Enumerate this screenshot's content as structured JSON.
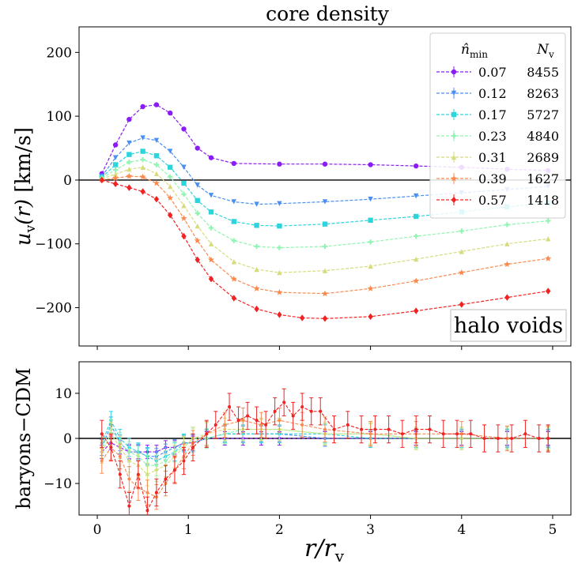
{
  "chart_data": [
    {
      "type": "line",
      "title": "core density",
      "xlabel": "r/r_v",
      "ylabel": "u_v(r) [km/s]",
      "xlim": [
        -0.2,
        5.2
      ],
      "ylim": [
        -260,
        240
      ],
      "xticks": [
        0,
        1,
        2,
        3,
        4,
        5
      ],
      "yticks": [
        -200,
        -100,
        0,
        100,
        200
      ],
      "ytick_labels": [
        "−200",
        "−100",
        "0",
        "100",
        "200"
      ],
      "annotation": "halo voids",
      "legend": {
        "header_left": "n̂_min",
        "header_right": "N_v",
        "placement": "top-right"
      },
      "series": [
        {
          "name": "0.07",
          "count": "8455",
          "color": "#8b1cf5",
          "marker": "circle",
          "x": [
            0.05,
            0.2,
            0.35,
            0.5,
            0.65,
            0.8,
            0.95,
            1.1,
            1.25,
            1.5,
            2.0,
            2.5,
            3.0,
            3.5,
            4.0,
            4.5,
            4.95
          ],
          "y": [
            10,
            55,
            95,
            115,
            118,
            105,
            80,
            50,
            35,
            26,
            25,
            25,
            24,
            22,
            20,
            17,
            15
          ]
        },
        {
          "name": "0.12",
          "count": "8263",
          "color": "#4a8ff0",
          "marker": "triangle-down",
          "x": [
            0.05,
            0.2,
            0.35,
            0.5,
            0.65,
            0.8,
            0.95,
            1.1,
            1.25,
            1.5,
            1.75,
            2.0,
            2.5,
            3.0,
            3.5,
            4.0,
            4.5,
            4.95
          ],
          "y": [
            6,
            35,
            58,
            66,
            62,
            45,
            20,
            -8,
            -24,
            -34,
            -38,
            -37,
            -34,
            -30,
            -25,
            -20,
            -15,
            -10
          ]
        },
        {
          "name": "0.17",
          "count": "5727",
          "color": "#2cd4dc",
          "marker": "square",
          "x": [
            0.05,
            0.2,
            0.35,
            0.5,
            0.65,
            0.8,
            0.95,
            1.1,
            1.25,
            1.5,
            1.75,
            2.0,
            2.5,
            3.0,
            3.5,
            4.0,
            4.5,
            4.95
          ],
          "y": [
            4,
            24,
            40,
            45,
            38,
            20,
            -5,
            -32,
            -50,
            -65,
            -71,
            -72,
            -69,
            -63,
            -57,
            -50,
            -42,
            -36
          ]
        },
        {
          "name": "0.23",
          "count": "4840",
          "color": "#8ef5b0",
          "marker": "plus",
          "x": [
            0.05,
            0.2,
            0.35,
            0.5,
            0.65,
            0.8,
            0.95,
            1.1,
            1.25,
            1.5,
            1.75,
            2.0,
            2.5,
            3.0,
            3.5,
            4.0,
            4.5,
            4.95
          ],
          "y": [
            3,
            16,
            28,
            32,
            24,
            5,
            -22,
            -52,
            -75,
            -95,
            -104,
            -106,
            -104,
            -97,
            -88,
            -80,
            -70,
            -64
          ]
        },
        {
          "name": "0.31",
          "count": "2689",
          "color": "#d6dc7c",
          "marker": "triangle-up",
          "x": [
            0.05,
            0.2,
            0.35,
            0.5,
            0.65,
            0.8,
            0.95,
            1.1,
            1.25,
            1.5,
            1.75,
            2.0,
            2.5,
            3.0,
            3.5,
            4.0,
            4.5,
            4.95
          ],
          "y": [
            2,
            9,
            17,
            20,
            10,
            -10,
            -40,
            -72,
            -100,
            -128,
            -140,
            -145,
            -142,
            -135,
            -124,
            -112,
            -100,
            -92
          ]
        },
        {
          "name": "0.39",
          "count": "1627",
          "color": "#fa8a4e",
          "marker": "star",
          "x": [
            0.05,
            0.2,
            0.35,
            0.5,
            0.65,
            0.8,
            0.95,
            1.1,
            1.25,
            1.5,
            1.75,
            2.0,
            2.5,
            3.0,
            3.5,
            4.0,
            4.5,
            4.95
          ],
          "y": [
            0,
            3,
            6,
            5,
            -5,
            -28,
            -60,
            -95,
            -125,
            -155,
            -170,
            -176,
            -178,
            -170,
            -158,
            -145,
            -132,
            -123
          ]
        },
        {
          "name": "0.57",
          "count": "1418",
          "color": "#f02222",
          "marker": "diamond",
          "x": [
            0.05,
            0.2,
            0.35,
            0.5,
            0.65,
            0.8,
            0.95,
            1.1,
            1.25,
            1.5,
            1.75,
            2.0,
            2.25,
            2.5,
            3.0,
            3.5,
            4.0,
            4.5,
            4.95
          ],
          "y": [
            0,
            -6,
            -12,
            -18,
            -30,
            -55,
            -88,
            -125,
            -155,
            -185,
            -202,
            -211,
            -216,
            -217,
            -214,
            -205,
            -195,
            -184,
            -174
          ]
        }
      ]
    },
    {
      "type": "line",
      "xlabel": "r/r_v",
      "ylabel": "baryons−CDM",
      "xlim": [
        -0.2,
        5.2
      ],
      "ylim": [
        -17,
        17
      ],
      "xticks": [
        0,
        1,
        2,
        3,
        4,
        5
      ],
      "yticks": [
        -10,
        0,
        10
      ],
      "ytick_labels": [
        "−10",
        "0",
        "10"
      ],
      "series": [
        {
          "name": "0.07",
          "color": "#8b1cf5",
          "x": [
            0.05,
            0.15,
            0.25,
            0.35,
            0.45,
            0.55,
            0.65,
            0.75,
            0.85,
            0.95,
            1.05,
            1.2,
            1.4,
            1.6,
            1.8,
            2.0,
            2.5,
            3.0,
            3.5,
            4.0,
            4.5,
            4.95
          ],
          "y": [
            -3,
            -1,
            -2,
            -3,
            -3,
            -3,
            -3,
            -2,
            -2,
            -1,
            -1,
            0,
            0,
            0,
            0,
            0,
            0,
            0,
            0,
            0,
            0,
            0
          ]
        },
        {
          "name": "0.12",
          "color": "#4a8ff0",
          "x": [
            0.05,
            0.15,
            0.25,
            0.35,
            0.45,
            0.55,
            0.65,
            0.75,
            0.85,
            0.95,
            1.05,
            1.2,
            1.4,
            1.6,
            1.8,
            2.0,
            2.5,
            3.0,
            3.5,
            4.0,
            4.5,
            4.95
          ],
          "y": [
            -2,
            3,
            -1,
            -3,
            -3,
            -4,
            -4,
            -3,
            -2,
            -1,
            -1,
            0,
            1,
            1,
            1,
            1,
            0,
            0,
            0,
            0,
            0,
            0
          ]
        },
        {
          "name": "0.17",
          "color": "#2cd4dc",
          "x": [
            0.05,
            0.15,
            0.25,
            0.35,
            0.45,
            0.55,
            0.65,
            0.75,
            0.85,
            0.95,
            1.05,
            1.2,
            1.4,
            1.6,
            1.8,
            2.0,
            2.5,
            3.0,
            3.5,
            4.0,
            4.5,
            4.95
          ],
          "y": [
            -1,
            4,
            0,
            -2,
            -3,
            -4,
            -5,
            -4,
            -3,
            -1,
            -1,
            0,
            1,
            1,
            1,
            1,
            1,
            0,
            0,
            0,
            0,
            0
          ]
        },
        {
          "name": "0.23",
          "color": "#8ef5b0",
          "x": [
            0.05,
            0.15,
            0.25,
            0.35,
            0.45,
            0.55,
            0.65,
            0.75,
            0.85,
            0.95,
            1.05,
            1.2,
            1.4,
            1.6,
            1.8,
            2.0,
            2.5,
            3.0,
            3.5,
            4.0,
            4.5,
            4.95
          ],
          "y": [
            -2,
            2,
            -1,
            -3,
            -4,
            -6,
            -6,
            -5,
            -3,
            -2,
            0,
            0,
            1,
            2,
            2,
            2,
            1,
            1,
            0,
            0,
            0,
            0
          ]
        },
        {
          "name": "0.31",
          "color": "#d6dc7c",
          "x": [
            0.05,
            0.15,
            0.25,
            0.35,
            0.45,
            0.55,
            0.65,
            0.75,
            0.85,
            0.95,
            1.05,
            1.2,
            1.4,
            1.6,
            1.8,
            2.0,
            2.5,
            3.0,
            3.5,
            4.0,
            4.5,
            4.95
          ],
          "y": [
            -3,
            1,
            -2,
            -5,
            -6,
            -8,
            -7,
            -6,
            -4,
            -2,
            0,
            1,
            2,
            2,
            2,
            2,
            1,
            1,
            0,
            0,
            0,
            0
          ]
        },
        {
          "name": "0.39",
          "color": "#fa8a4e",
          "x": [
            0.05,
            0.15,
            0.25,
            0.35,
            0.45,
            0.55,
            0.65,
            0.75,
            0.85,
            0.95,
            1.05,
            1.2,
            1.4,
            1.6,
            1.8,
            2.0,
            2.25,
            2.5,
            3.0,
            3.5,
            4.0,
            4.5,
            4.95
          ],
          "y": [
            -5,
            -2,
            -4,
            -9,
            -11,
            -12,
            -13,
            -10,
            -7,
            -4,
            -1,
            1,
            3,
            4,
            3,
            4,
            3,
            2,
            1,
            1,
            1,
            0,
            0
          ]
        },
        {
          "name": "0.57",
          "color": "#f02222",
          "x": [
            0.05,
            0.15,
            0.25,
            0.35,
            0.45,
            0.55,
            0.65,
            0.75,
            0.85,
            0.95,
            1.05,
            1.2,
            1.3,
            1.45,
            1.55,
            1.65,
            1.75,
            1.85,
            1.95,
            2.05,
            2.15,
            2.25,
            2.35,
            2.45,
            2.6,
            2.75,
            2.9,
            3.05,
            3.2,
            3.35,
            3.5,
            3.65,
            3.8,
            3.95,
            4.1,
            4.25,
            4.4,
            4.55,
            4.7,
            4.85,
            4.95
          ],
          "y": [
            1,
            -2,
            -8,
            -15,
            -8,
            -16,
            -12,
            -9,
            -7,
            -5,
            -2,
            1,
            3,
            7,
            4,
            5,
            4,
            3,
            6,
            8,
            5,
            7,
            6,
            6,
            2,
            3,
            2,
            2,
            2,
            1,
            2,
            2,
            1,
            1,
            1,
            0,
            0,
            0,
            1,
            0,
            0
          ]
        }
      ]
    }
  ]
}
